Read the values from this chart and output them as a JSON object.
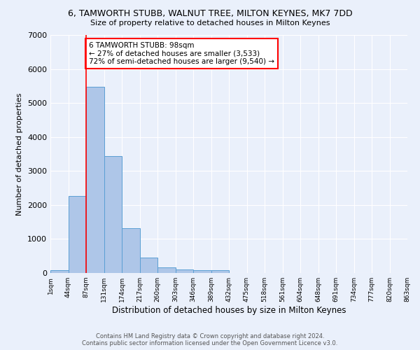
{
  "title": "6, TAMWORTH STUBB, WALNUT TREE, MILTON KEYNES, MK7 7DD",
  "subtitle": "Size of property relative to detached houses in Milton Keynes",
  "xlabel": "Distribution of detached houses by size in Milton Keynes",
  "ylabel": "Number of detached properties",
  "bin_labels": [
    "1sqm",
    "44sqm",
    "87sqm",
    "131sqm",
    "174sqm",
    "217sqm",
    "260sqm",
    "303sqm",
    "346sqm",
    "389sqm",
    "432sqm",
    "475sqm",
    "518sqm",
    "561sqm",
    "604sqm",
    "648sqm",
    "691sqm",
    "734sqm",
    "777sqm",
    "820sqm",
    "863sqm"
  ],
  "bar_heights": [
    75,
    2270,
    5480,
    3440,
    1310,
    460,
    160,
    100,
    75,
    75,
    0,
    0,
    0,
    0,
    0,
    0,
    0,
    0,
    0,
    0
  ],
  "bar_color": "#aec6e8",
  "bar_edge_color": "#5a9fd4",
  "red_line_x": 2,
  "property_sqm": 98,
  "pct_smaller": 27,
  "n_smaller": 3533,
  "pct_larger_semi": 72,
  "n_larger_semi": 9540,
  "ylim": [
    0,
    7000
  ],
  "yticks": [
    0,
    1000,
    2000,
    3000,
    4000,
    5000,
    6000,
    7000
  ],
  "bg_color": "#eaf0fb",
  "grid_color": "#ffffff",
  "footer_line1": "Contains HM Land Registry data © Crown copyright and database right 2024.",
  "footer_line2": "Contains public sector information licensed under the Open Government Licence v3.0."
}
